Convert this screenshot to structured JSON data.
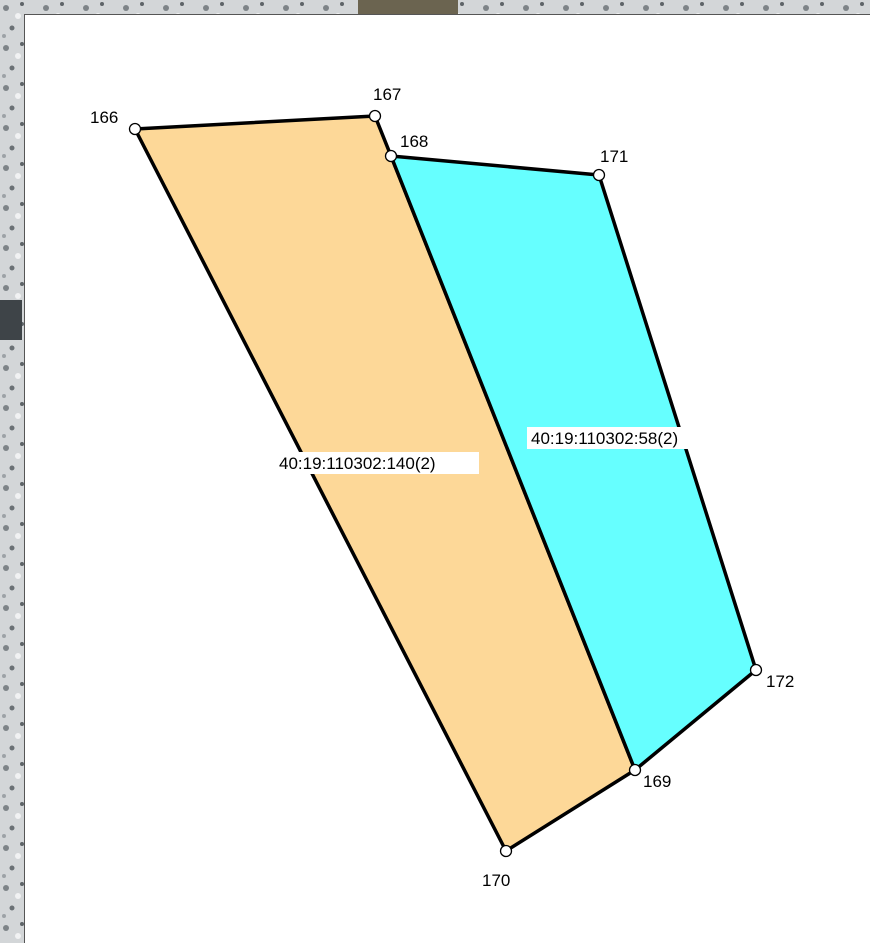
{
  "map": {
    "colors": {
      "parcel_140_fill": "#fdd898",
      "parcel_58_fill": "#66ffff",
      "boundary": "#000000",
      "sheet": "#ffffff",
      "snow_background": "#d3d6d8"
    },
    "parcels": [
      {
        "id": "parcel-140",
        "label": "40:19:110302:140(2)",
        "vertices": [
          "166",
          "167",
          "168",
          "169",
          "170"
        ]
      },
      {
        "id": "parcel-58",
        "label": "40:19:110302:58(2)",
        "vertices": [
          "168",
          "171",
          "172",
          "169"
        ]
      }
    ],
    "points": [
      "166",
      "167",
      "168",
      "169",
      "170",
      "171",
      "172"
    ]
  }
}
